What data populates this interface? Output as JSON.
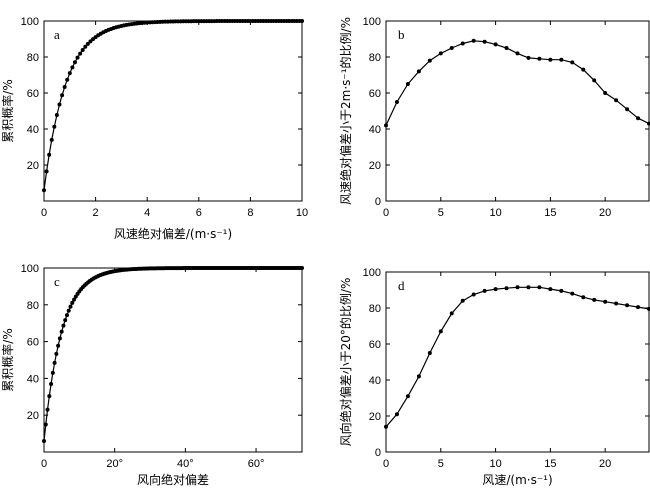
{
  "chart_data": [
    {
      "id": "a",
      "type": "line",
      "panel_label": "a",
      "xlabel": "风速绝对偏差/(m·s⁻¹)",
      "ylabel": "累积概率/%",
      "xlim": [
        0,
        10
      ],
      "ylim": [
        0,
        100
      ],
      "xticks": [
        0,
        2,
        4,
        6,
        8,
        10
      ],
      "xtick_labels": [
        "0",
        "2",
        "4",
        "6",
        "8",
        "10"
      ],
      "yticks": [
        20,
        40,
        60,
        80,
        100
      ],
      "ytick_labels": [
        "20",
        "40",
        "60",
        "80",
        "100"
      ],
      "marker": "dot",
      "curve": {
        "form": "cdf",
        "y0": 6,
        "tau": 0.85
      },
      "x": {
        "start": 0,
        "end": 10,
        "step": 0.1
      }
    },
    {
      "id": "b",
      "type": "line",
      "panel_label": "b",
      "xlabel": "",
      "ylabel": "风速绝对偏差小于2m·s⁻¹的比例/%",
      "xlim": [
        0,
        24
      ],
      "ylim": [
        0,
        100
      ],
      "xticks": [
        0,
        5,
        10,
        15,
        20
      ],
      "xtick_labels": [
        "0",
        "5",
        "10",
        "15",
        "20"
      ],
      "yticks": [
        0,
        20,
        40,
        60,
        80,
        100
      ],
      "ytick_labels": [
        "0",
        "20",
        "40",
        "60",
        "80",
        "100"
      ],
      "marker": "dot",
      "x": [
        0,
        1,
        2,
        3,
        4,
        5,
        6,
        7,
        8,
        9,
        10,
        11,
        12,
        13,
        14,
        15,
        16,
        17,
        18,
        19,
        20,
        21,
        22,
        23,
        24
      ],
      "values": [
        42,
        55,
        65,
        72,
        78,
        82,
        85,
        87.5,
        89,
        88.5,
        87,
        85,
        82,
        79.5,
        79,
        78.5,
        78.5,
        77,
        73,
        67,
        60,
        56,
        51,
        46,
        43
      ]
    },
    {
      "id": "c",
      "type": "line",
      "panel_label": "c",
      "xlabel": "风向绝对偏差",
      "ylabel": "累积概率/%",
      "xlim": [
        0,
        73
      ],
      "ylim": [
        0,
        100
      ],
      "xticks": [
        0,
        20,
        40,
        60
      ],
      "xtick_labels": [
        "0",
        "20°",
        "40°",
        "60°"
      ],
      "yticks": [
        20,
        40,
        60,
        80,
        100
      ],
      "ytick_labels": [
        "20",
        "40",
        "60",
        "80",
        "100"
      ],
      "marker": "dot",
      "curve": {
        "form": "cdf",
        "y0": 6,
        "tau": 5
      },
      "x": {
        "start": 0,
        "end": 73,
        "step": 0.5
      }
    },
    {
      "id": "d",
      "type": "line",
      "panel_label": "d",
      "xlabel": "风速/(m·s⁻¹)",
      "ylabel": "风向绝对偏差小于20°的比例/%",
      "xlim": [
        0,
        24
      ],
      "ylim": [
        0,
        100
      ],
      "xticks": [
        0,
        5,
        10,
        15,
        20
      ],
      "xtick_labels": [
        "0",
        "5",
        "10",
        "15",
        "20"
      ],
      "yticks": [
        0,
        20,
        40,
        60,
        80,
        100
      ],
      "ytick_labels": [
        "0",
        "20",
        "40",
        "60",
        "80",
        "100"
      ],
      "marker": "dot",
      "x": [
        0,
        1,
        2,
        3,
        4,
        5,
        6,
        7,
        8,
        9,
        10,
        11,
        12,
        13,
        14,
        15,
        16,
        17,
        18,
        19,
        20,
        21,
        22,
        23,
        24
      ],
      "values": [
        14,
        21,
        31,
        42,
        55,
        67,
        77,
        84,
        87.5,
        89.5,
        90.5,
        91,
        91.5,
        91.5,
        91.5,
        90.5,
        89.5,
        88,
        86,
        84.5,
        83.5,
        82.5,
        81.5,
        80.5,
        79.5
      ]
    }
  ]
}
